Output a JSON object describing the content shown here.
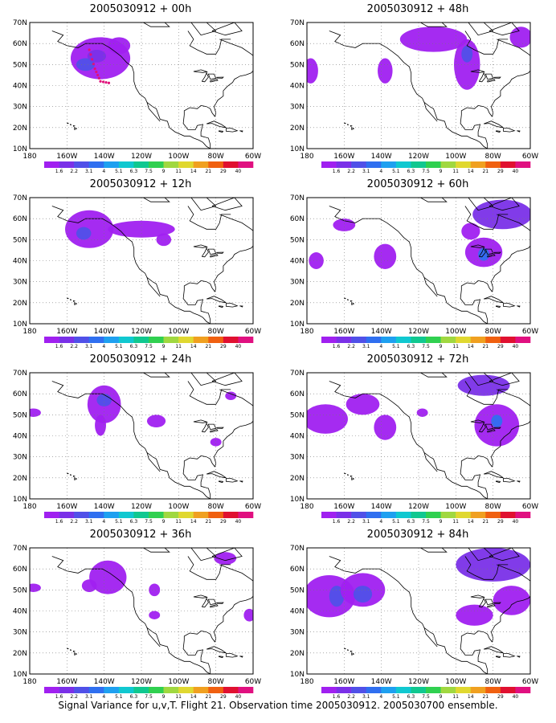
{
  "footer": "Signal Variance for u,v,T. Flight 21. Observation time 2005030912. 2005030700 ensemble.",
  "colorbar": {
    "labels": [
      "1.6",
      "2.2",
      "3.1",
      "4",
      "5.1",
      "6.3",
      "7.5",
      "9",
      "11",
      "14",
      "21",
      "29",
      "40"
    ],
    "colors": [
      "#a020f0",
      "#7a30e8",
      "#5050e8",
      "#2f6ff0",
      "#1ea0f0",
      "#10c8d0",
      "#10c890",
      "#30d050",
      "#a0d840",
      "#e0d830",
      "#f0a020",
      "#f06010",
      "#e01030",
      "#e01080"
    ]
  },
  "axes": {
    "ylabels": [
      "70N",
      "60N",
      "50N",
      "40N",
      "30N",
      "20N",
      "10N"
    ],
    "xlabels": [
      "180",
      "160W",
      "140W",
      "120W",
      "100W",
      "80W",
      "60W"
    ]
  },
  "chart_data": [
    {
      "type": "heatmap",
      "title": "2005030912 + 00h",
      "field": "signal variance u,v,T",
      "x_range": [
        "180",
        "60W"
      ],
      "y_range": [
        "10N",
        "70N"
      ],
      "regions": [
        {
          "lon": -143,
          "lat": 53,
          "level": "1.6-3.1"
        },
        {
          "lon": -150,
          "lat": 50,
          "level": "3.1-4"
        },
        {
          "lon": -135,
          "lat": 57,
          "level": "1.6-2.2"
        }
      ],
      "flight_track": [
        {
          "lon": -148,
          "lat": 57
        },
        {
          "lon": -145,
          "lat": 48
        },
        {
          "lon": -142,
          "lat": 42
        },
        {
          "lon": -136,
          "lat": 41
        }
      ]
    },
    {
      "type": "heatmap",
      "title": "2005030912 + 12h",
      "field": "signal variance u,v,T",
      "x_range": [
        "180",
        "60W"
      ],
      "y_range": [
        "10N",
        "70N"
      ],
      "regions": [
        {
          "lon": -150,
          "lat": 55,
          "level": "1.6-3.1"
        },
        {
          "lon": -118,
          "lat": 55,
          "level": "1.6-2.2"
        }
      ]
    },
    {
      "type": "heatmap",
      "title": "2005030912 + 24h",
      "field": "signal variance u,v,T",
      "x_range": [
        "180",
        "60W"
      ],
      "y_range": [
        "10N",
        "70N"
      ],
      "regions": [
        {
          "lon": -140,
          "lat": 55,
          "level": "1.6-4"
        },
        {
          "lon": -178,
          "lat": 51,
          "level": "1.6-2.2"
        },
        {
          "lon": -112,
          "lat": 47,
          "level": "1.6-2.2"
        },
        {
          "lon": -80,
          "lat": 37,
          "level": "1.6-2.2"
        },
        {
          "lon": -72,
          "lat": 59,
          "level": "1.6-2.2"
        }
      ]
    },
    {
      "type": "heatmap",
      "title": "2005030912 + 36h",
      "field": "signal variance u,v,T",
      "x_range": [
        "180",
        "60W"
      ],
      "y_range": [
        "10N",
        "70N"
      ],
      "regions": [
        {
          "lon": -140,
          "lat": 55,
          "level": "1.6-2.2"
        },
        {
          "lon": -178,
          "lat": 51,
          "level": "1.6-2.2"
        },
        {
          "lon": -113,
          "lat": 50,
          "level": "1.6-2.2"
        },
        {
          "lon": -75,
          "lat": 65,
          "level": "1.6-2.2"
        },
        {
          "lon": -62,
          "lat": 38,
          "level": "1.6-2.2"
        }
      ]
    },
    {
      "type": "heatmap",
      "title": "2005030912 + 48h",
      "field": "signal variance u,v,T",
      "x_range": [
        "180",
        "60W"
      ],
      "y_range": [
        "10N",
        "70N"
      ],
      "regions": [
        {
          "lon": -112,
          "lat": 62,
          "level": "1.6-2.2"
        },
        {
          "lon": -94,
          "lat": 50,
          "level": "1.6-4"
        },
        {
          "lon": -178,
          "lat": 47,
          "level": "1.6-2.2"
        },
        {
          "lon": -138,
          "lat": 47,
          "level": "1.6-2.2"
        },
        {
          "lon": -65,
          "lat": 63,
          "level": "1.6-2.2"
        }
      ]
    },
    {
      "type": "heatmap",
      "title": "2005030912 + 60h",
      "field": "signal variance u,v,T",
      "x_range": [
        "180",
        "60W"
      ],
      "y_range": [
        "10N",
        "70N"
      ],
      "regions": [
        {
          "lon": -85,
          "lat": 44,
          "level": "1.6-5.1"
        },
        {
          "lon": -75,
          "lat": 62,
          "level": "1.6-3.1"
        },
        {
          "lon": -138,
          "lat": 42,
          "level": "1.6-3.1"
        },
        {
          "lon": -175,
          "lat": 40,
          "level": "1.6-2.2"
        },
        {
          "lon": -160,
          "lat": 57,
          "level": "1.6-2.2"
        }
      ]
    },
    {
      "type": "heatmap",
      "title": "2005030912 + 72h",
      "field": "signal variance u,v,T",
      "x_range": [
        "180",
        "60W"
      ],
      "y_range": [
        "10N",
        "70N"
      ],
      "regions": [
        {
          "lon": -170,
          "lat": 48,
          "level": "1.6-3.1"
        },
        {
          "lon": -150,
          "lat": 55,
          "level": "1.6-2.2"
        },
        {
          "lon": -138,
          "lat": 44,
          "level": "1.6-3.1"
        },
        {
          "lon": -78,
          "lat": 45,
          "level": "1.6-3.1"
        },
        {
          "lon": -85,
          "lat": 64,
          "level": "1.6-2.2"
        }
      ]
    },
    {
      "type": "heatmap",
      "title": "2005030912 + 84h",
      "field": "signal variance u,v,T",
      "x_range": [
        "180",
        "60W"
      ],
      "y_range": [
        "10N",
        "70N"
      ],
      "regions": [
        {
          "lon": -168,
          "lat": 47,
          "level": "1.6-4"
        },
        {
          "lon": -150,
          "lat": 50,
          "level": "1.6-4"
        },
        {
          "lon": -80,
          "lat": 62,
          "level": "1.6-5.1"
        },
        {
          "lon": -70,
          "lat": 45,
          "level": "1.6-3.1"
        },
        {
          "lon": -90,
          "lat": 38,
          "level": "1.6-2.2"
        }
      ]
    }
  ]
}
